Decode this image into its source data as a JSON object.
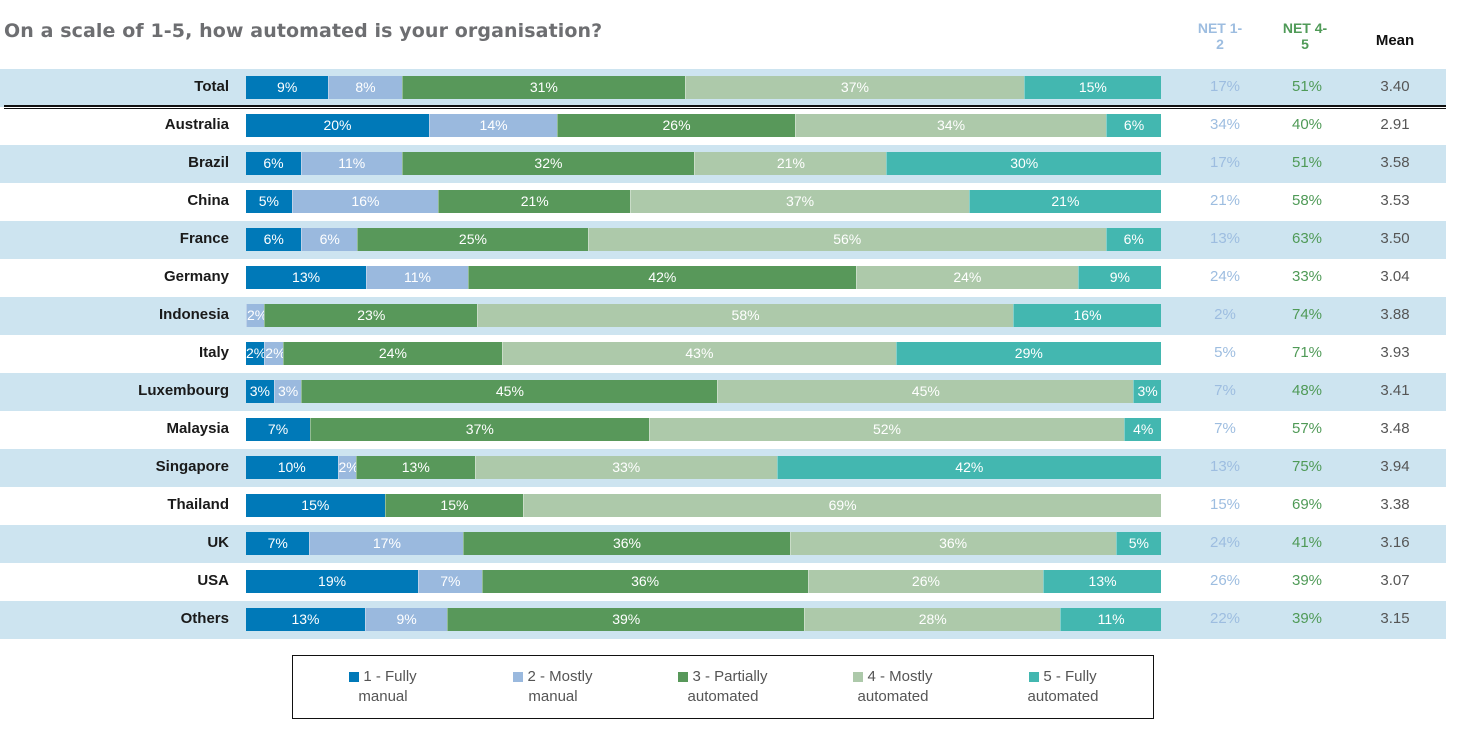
{
  "chart_data": {
    "type": "bar",
    "orientation": "horizontal",
    "stacked": true,
    "title": "On a scale of 1-5, how automated is your organisation?",
    "xlabel": "",
    "ylabel": "",
    "xlim": [
      0,
      100
    ],
    "legend_position": "bottom",
    "categories": [
      "Total",
      "Australia",
      "Brazil",
      "China",
      "France",
      "Germany",
      "Indonesia",
      "Italy",
      "Luxembourg",
      "Malaysia",
      "Singapore",
      "Thailand",
      "UK",
      "USA",
      "Others"
    ],
    "series": [
      {
        "name": "1 - Fully manual",
        "color": "#0079b8",
        "values": [
          9,
          20,
          6,
          5,
          6,
          13,
          0,
          2,
          3,
          7,
          10,
          15,
          7,
          19,
          13
        ]
      },
      {
        "name": "2 - Mostly manual",
        "color": "#9ab9de",
        "values": [
          8,
          14,
          11,
          16,
          6,
          11,
          2,
          2,
          3,
          0,
          2,
          0,
          17,
          7,
          9
        ]
      },
      {
        "name": "3 - Partially automated",
        "color": "#58985a",
        "values": [
          31,
          26,
          32,
          21,
          25,
          42,
          23,
          24,
          45,
          37,
          13,
          15,
          36,
          36,
          39
        ]
      },
      {
        "name": "4 - Mostly automated",
        "color": "#adc9aa",
        "values": [
          37,
          34,
          21,
          37,
          56,
          24,
          58,
          43,
          45,
          52,
          33,
          69,
          36,
          26,
          28
        ]
      },
      {
        "name": "5 - Fully automated",
        "color": "#43b7b0",
        "values": [
          15,
          6,
          30,
          21,
          6,
          9,
          16,
          29,
          3,
          4,
          42,
          0,
          5,
          13,
          11
        ]
      }
    ],
    "table_columns": [
      {
        "header_line1": "NET 1-",
        "header_line2": "2",
        "color": "#9dbde0"
      },
      {
        "header_line1": "NET 4-",
        "header_line2": "5",
        "color": "#4f9a57"
      },
      {
        "header_line1": "Mean",
        "header_line2": "",
        "color": "#111111"
      }
    ],
    "net_1_2": [
      "17%",
      "34%",
      "17%",
      "21%",
      "13%",
      "24%",
      "2%",
      "5%",
      "7%",
      "7%",
      "13%",
      "15%",
      "24%",
      "26%",
      "22%"
    ],
    "net_4_5": [
      "51%",
      "40%",
      "51%",
      "58%",
      "63%",
      "33%",
      "74%",
      "71%",
      "48%",
      "57%",
      "75%",
      "69%",
      "41%",
      "39%",
      "39%"
    ],
    "mean": [
      "3.40",
      "2.91",
      "3.58",
      "3.53",
      "3.50",
      "3.04",
      "3.88",
      "3.93",
      "3.41",
      "3.48",
      "3.94",
      "3.38",
      "3.16",
      "3.07",
      "3.15"
    ]
  },
  "legend": [
    {
      "line1": "1 - Fully",
      "line2": "manual",
      "color": "#0079b8"
    },
    {
      "line1": "2 - Mostly",
      "line2": "manual",
      "color": "#9ab9de"
    },
    {
      "line1": "3 - Partially",
      "line2": "automated",
      "color": "#58985a"
    },
    {
      "line1": "4 - Mostly",
      "line2": "automated",
      "color": "#adc9aa"
    },
    {
      "line1": "5 - Fully",
      "line2": "automated",
      "color": "#43b7b0"
    }
  ],
  "colors": {
    "band": "#cde4f0"
  }
}
